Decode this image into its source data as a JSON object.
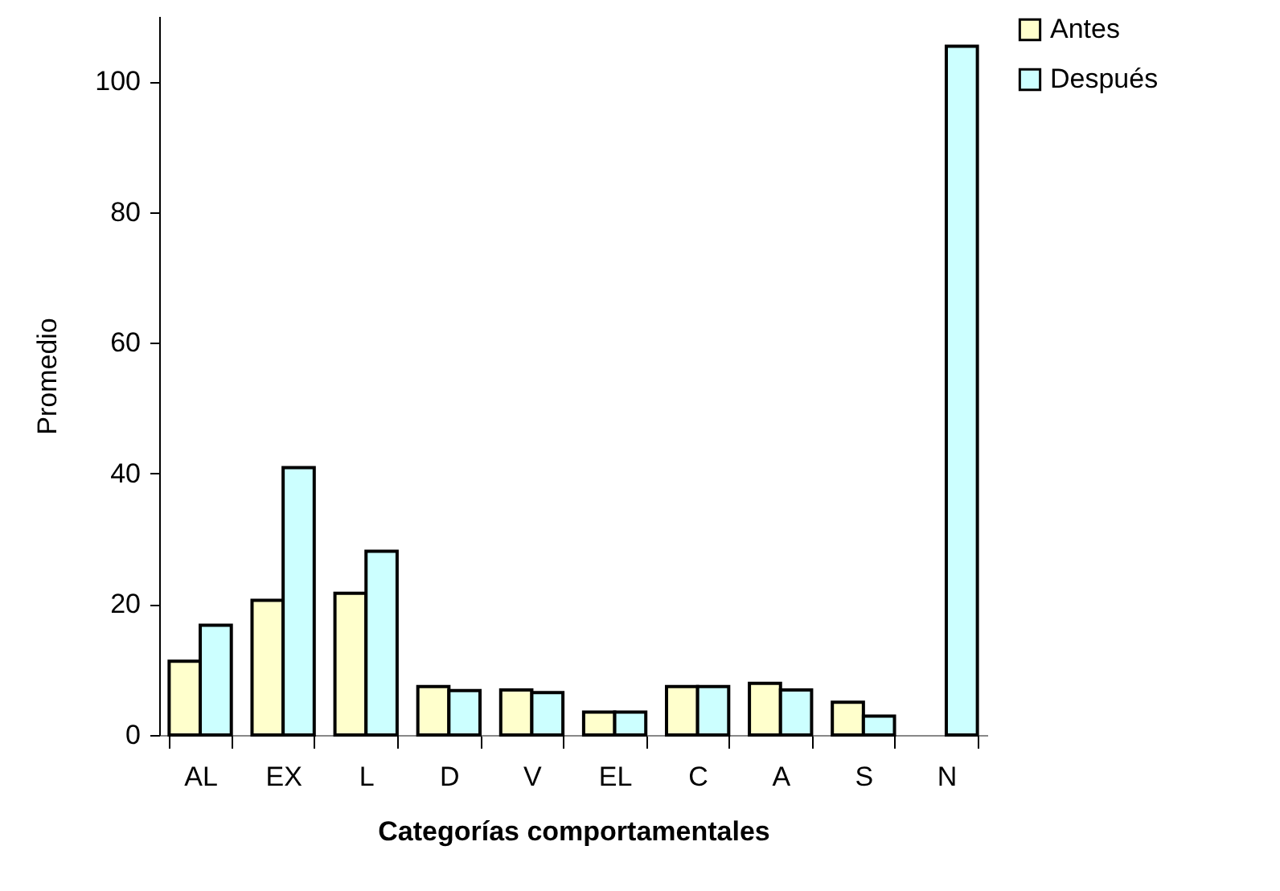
{
  "chart_data": {
    "type": "bar",
    "xlabel": "Categorías comportamentales",
    "ylabel": "Promedio",
    "categories": [
      "AL",
      "EX",
      "L",
      "D",
      "V",
      "EL",
      "C",
      "A",
      "S",
      "N"
    ],
    "series": [
      {
        "name": "Antes",
        "color": "#ffffcc",
        "values": [
          11.3,
          20.6,
          21.7,
          7.4,
          6.9,
          3.5,
          7.4,
          7.9,
          5.0,
          null
        ]
      },
      {
        "name": "Después",
        "color": "#ccffff",
        "values": [
          16.8,
          40.9,
          28.1,
          6.8,
          6.5,
          3.5,
          7.4,
          6.9,
          2.9,
          105.4
        ]
      }
    ],
    "ylim": [
      0,
      110
    ],
    "yticks": [
      0,
      20,
      40,
      60,
      80,
      100
    ],
    "grid": false,
    "legend": "right"
  }
}
